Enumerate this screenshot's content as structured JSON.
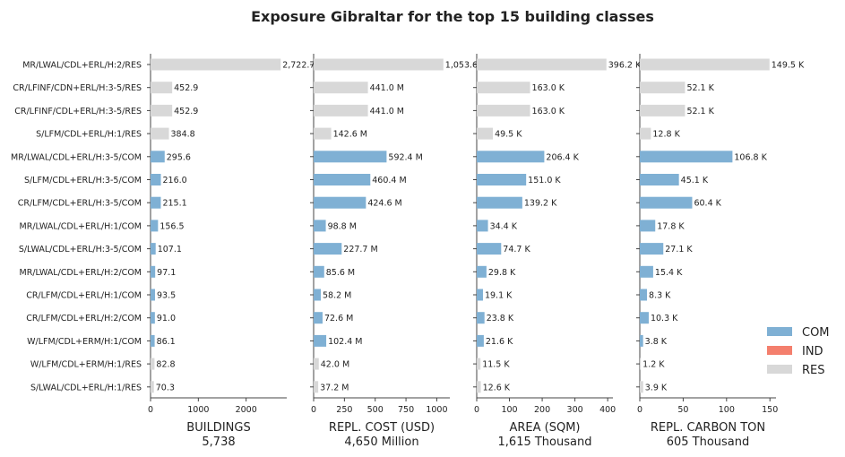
{
  "chart_data": {
    "type": "bar",
    "orientation": "horizontal",
    "title": "Exposure Gibraltar for the top 15 building classes",
    "categories": [
      "MR/LWAL/CDL+ERL/H:2/RES",
      "CR/LFINF/CDN+ERL/H:3-5/RES",
      "CR/LFINF/CDL+ERL/H:3-5/RES",
      "S/LFM/CDL+ERL/H:1/RES",
      "MR/LWAL/CDL+ERL/H:3-5/COM",
      "S/LFM/CDL+ERL/H:3-5/COM",
      "CR/LFM/CDL+ERL/H:3-5/COM",
      "MR/LWAL/CDL+ERL/H:1/COM",
      "S/LWAL/CDL+ERL/H:3-5/COM",
      "MR/LWAL/CDL+ERL/H:2/COM",
      "CR/LFM/CDL+ERL/H:1/COM",
      "CR/LFM/CDL+ERL/H:2/COM",
      "W/LFM/CDL+ERM/H:1/COM",
      "W/LFM/CDL+ERM/H:1/RES",
      "S/LWAL/CDL+ERL/H:1/RES"
    ],
    "occupancy": [
      "RES",
      "RES",
      "RES",
      "RES",
      "COM",
      "COM",
      "COM",
      "COM",
      "COM",
      "COM",
      "COM",
      "COM",
      "COM",
      "RES",
      "RES"
    ],
    "legend": {
      "placement": "lower-right",
      "entries": [
        {
          "name": "COM",
          "color": "#7fb0d4"
        },
        {
          "name": "IND",
          "color": "#f47f6d"
        },
        {
          "name": "RES",
          "color": "#d8d8d8"
        }
      ]
    },
    "panels": [
      {
        "xlabel": "BUILDINGS",
        "total": "5,738",
        "xlim": [
          0,
          2850
        ],
        "ticks": [
          0,
          1000,
          2000
        ],
        "tick_labels": [
          "0",
          "1000",
          "2000"
        ],
        "values": [
          2722.7,
          452.9,
          452.9,
          384.8,
          295.6,
          216.0,
          215.1,
          156.5,
          107.1,
          97.1,
          93.5,
          91.0,
          86.1,
          82.8,
          70.3
        ],
        "labels": [
          "2,722.7",
          "452.9",
          "452.9",
          "384.8",
          "295.6",
          "216.0",
          "215.1",
          "156.5",
          "107.1",
          "97.1",
          "93.5",
          "91.0",
          "86.1",
          "82.8",
          "70.3"
        ]
      },
      {
        "xlabel": "REPL. COST (USD)",
        "total": "4,650 Million",
        "xlim": [
          0,
          1106
        ],
        "ticks": [
          0,
          250,
          500,
          750,
          1000
        ],
        "tick_labels": [
          "0",
          "250",
          "500",
          "750",
          "1000"
        ],
        "values": [
          1053.6,
          441.0,
          441.0,
          142.6,
          592.4,
          460.4,
          424.6,
          98.8,
          227.7,
          85.6,
          58.2,
          72.6,
          102.4,
          42.0,
          37.2
        ],
        "labels": [
          "1,053.6",
          "441.0 M",
          "441.0 M",
          "142.6 M",
          "592.4 M",
          "460.4 M",
          "424.6 M",
          "98.8 M",
          "227.7 M",
          "85.6 M",
          "58.2 M",
          "72.6 M",
          "102.4 M",
          "42.0 M",
          "37.2 M"
        ]
      },
      {
        "xlabel": "AREA (SQM)",
        "total": "1,615 Thousand",
        "xlim": [
          0,
          416
        ],
        "ticks": [
          0,
          100,
          200,
          300,
          400
        ],
        "tick_labels": [
          "0",
          "100",
          "200",
          "300",
          "400"
        ],
        "values": [
          396.2,
          163.0,
          163.0,
          49.5,
          206.4,
          151.0,
          139.2,
          34.4,
          74.7,
          29.8,
          19.1,
          23.8,
          21.6,
          11.5,
          12.6
        ],
        "labels": [
          "396.2 K",
          "163.0 K",
          "163.0 K",
          "49.5 K",
          "206.4 K",
          "151.0 K",
          "139.2 K",
          "34.4 K",
          "74.7 K",
          "29.8 K",
          "19.1 K",
          "23.8 K",
          "21.6 K",
          "11.5 K",
          "12.6 K"
        ]
      },
      {
        "xlabel": "REPL. CARBON TON",
        "total": "605 Thousand",
        "xlim": [
          0,
          157
        ],
        "ticks": [
          0,
          50,
          100,
          150
        ],
        "tick_labels": [
          "0",
          "50",
          "100",
          "150"
        ],
        "values": [
          149.5,
          52.1,
          52.1,
          12.8,
          106.8,
          45.1,
          60.4,
          17.8,
          27.1,
          15.4,
          8.3,
          10.3,
          3.8,
          1.2,
          3.9
        ],
        "labels": [
          "149.5 K",
          "52.1 K",
          "52.1 K",
          "12.8 K",
          "106.8 K",
          "45.1 K",
          "60.4 K",
          "17.8 K",
          "27.1 K",
          "15.4 K",
          "8.3 K",
          "10.3 K",
          "3.8 K",
          "1.2 K",
          "3.9 K"
        ]
      }
    ]
  }
}
